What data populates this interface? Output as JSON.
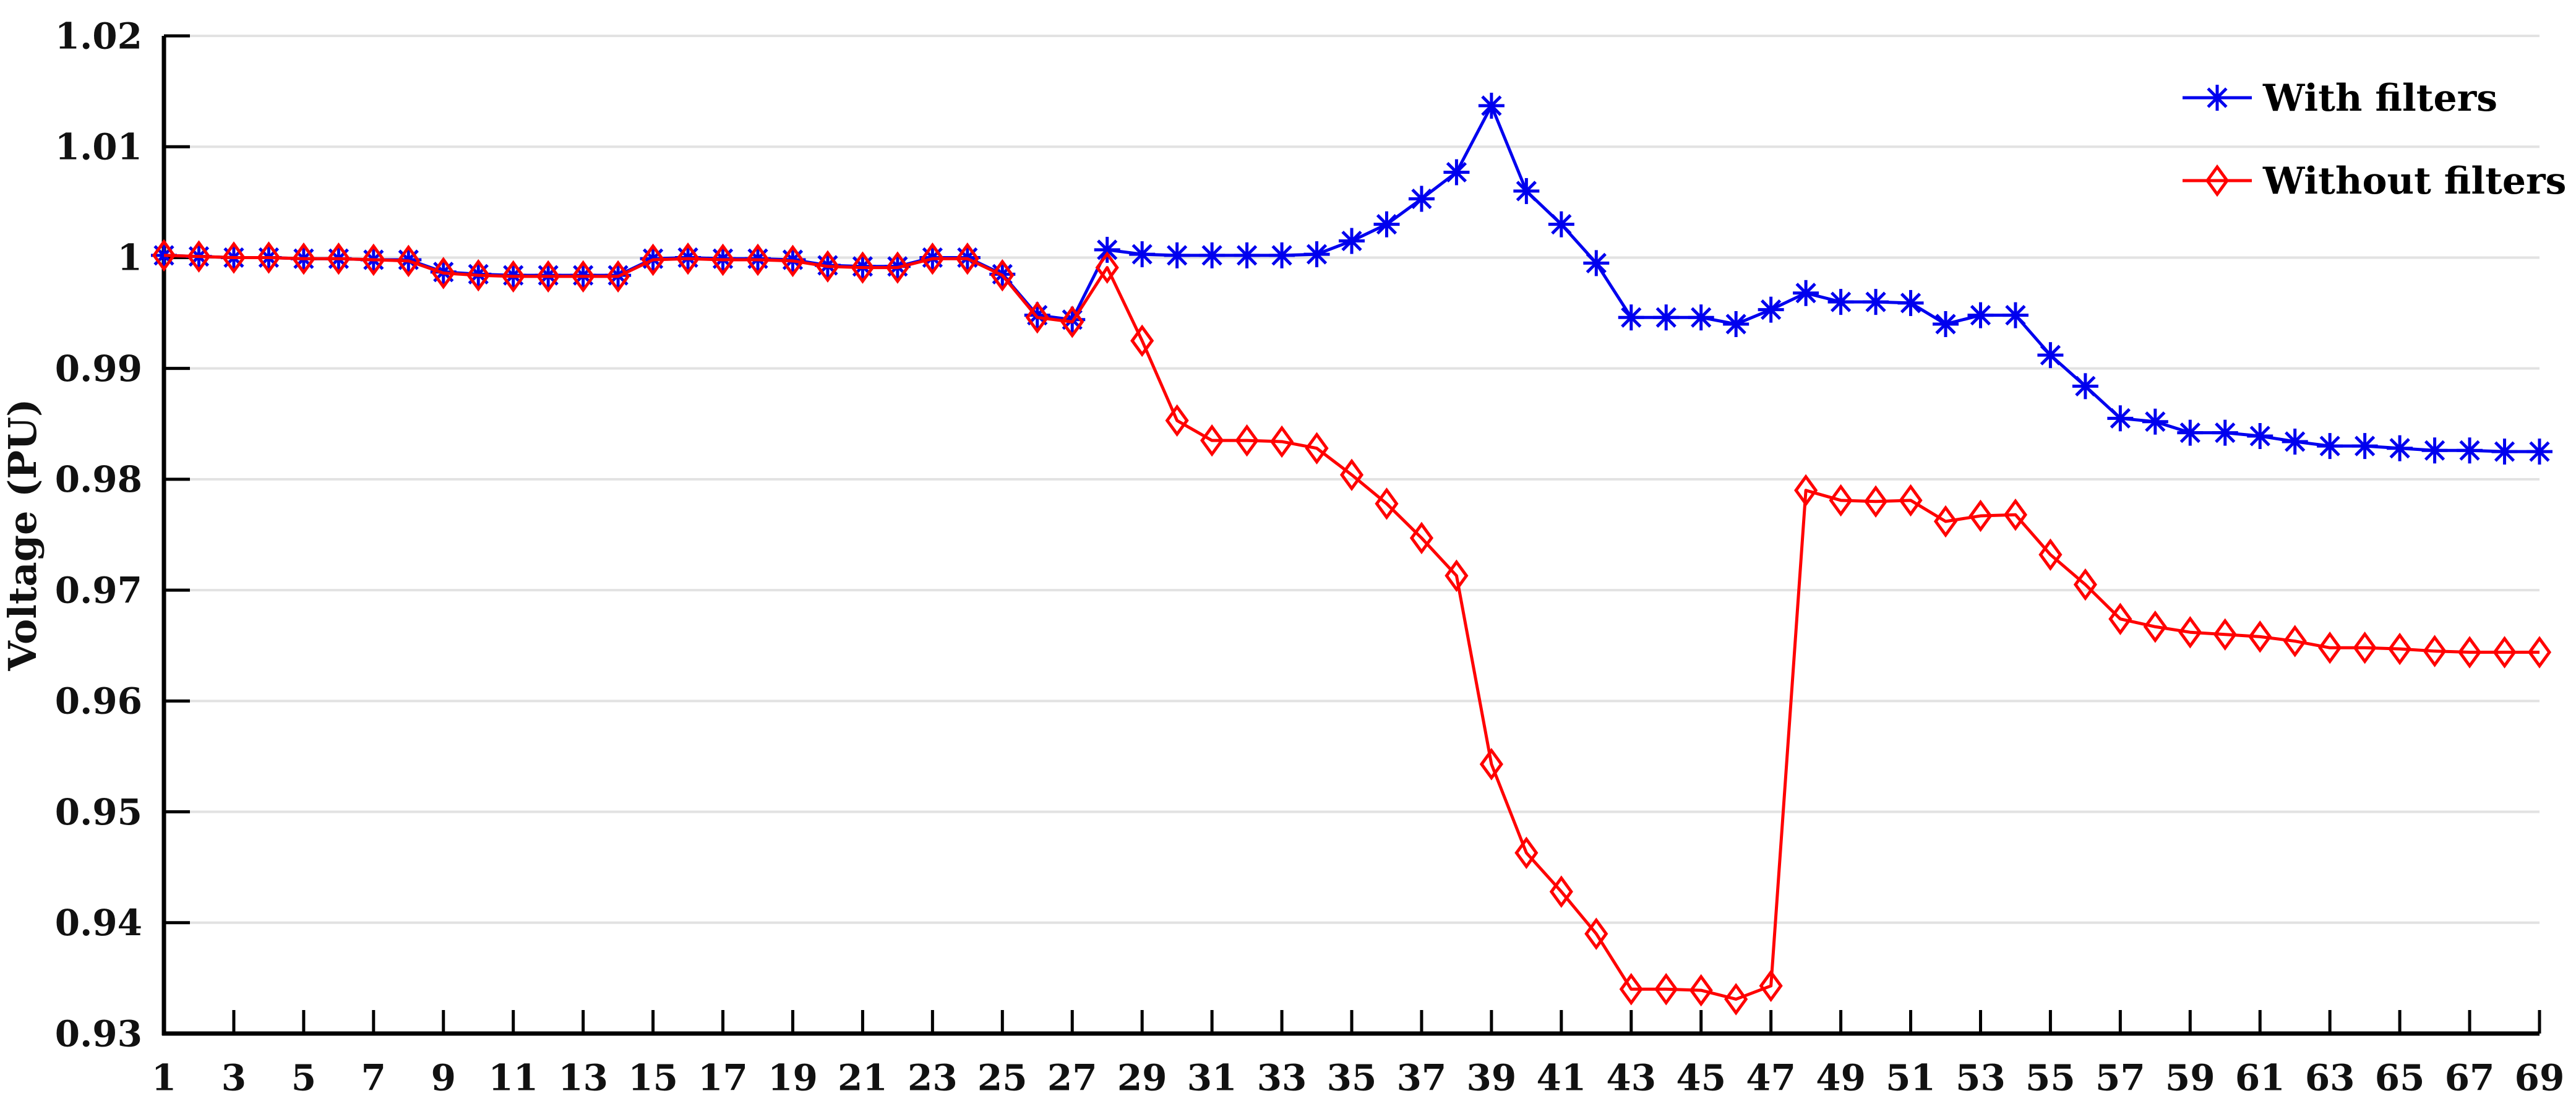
{
  "chart_data": {
    "type": "line",
    "title": "",
    "xlabel": "",
    "ylabel": "Voltage (PU)",
    "x_range": [
      1,
      69
    ],
    "ylim": [
      0.93,
      1.02
    ],
    "grid": "horizontal-only",
    "legend_position": "top-right",
    "xtick_labels": [
      "1",
      "3",
      "5",
      "7",
      "9",
      "11",
      "13",
      "15",
      "17",
      "19",
      "21",
      "23",
      "25",
      "27",
      "29",
      "31",
      "33",
      "35",
      "37",
      "39",
      "41",
      "43",
      "45",
      "47",
      "49",
      "51",
      "53",
      "55",
      "57",
      "59",
      "61",
      "63",
      "65",
      "67",
      "69"
    ],
    "xtick_values": [
      1,
      3,
      5,
      7,
      9,
      11,
      13,
      15,
      17,
      19,
      21,
      23,
      25,
      27,
      29,
      31,
      33,
      35,
      37,
      39,
      41,
      43,
      45,
      47,
      49,
      51,
      53,
      55,
      57,
      59,
      61,
      63,
      65,
      67,
      69
    ],
    "ytick_labels": [
      "0.93",
      "0.94",
      "0.95",
      "0.96",
      "0.97",
      "0.98",
      "0.99",
      "1",
      "1.01",
      "1.02"
    ],
    "ytick_values": [
      0.93,
      0.94,
      0.95,
      0.96,
      0.97,
      0.98,
      0.99,
      1.0,
      1.01,
      1.02
    ],
    "grid_color": "#e2e2e2",
    "axis_color": "#000000",
    "text_color": "#111111",
    "series": [
      {
        "name": "With filters",
        "color": "#0000ee",
        "marker": "asterisk",
        "values": [
          1.0002,
          1.0001,
          1.0,
          1.0,
          0.9999,
          0.9999,
          0.9998,
          0.9998,
          0.9987,
          0.9985,
          0.9984,
          0.9984,
          0.9984,
          0.9984,
          0.9999,
          1.0,
          0.9999,
          0.9999,
          0.9998,
          0.9993,
          0.9992,
          0.9992,
          1.0,
          1.0,
          0.9985,
          0.9948,
          0.9944,
          1.0007,
          1.0003,
          1.0002,
          1.0002,
          1.0002,
          1.0002,
          1.0003,
          1.0015,
          1.003,
          1.0053,
          1.0077,
          1.0137,
          1.006,
          1.003,
          0.9995,
          0.9946,
          0.9946,
          0.9946,
          0.994,
          0.9953,
          0.9968,
          0.996,
          0.996,
          0.9959,
          0.994,
          0.9948,
          0.9948,
          0.9912,
          0.9884,
          0.9855,
          0.9852,
          0.9842,
          0.9842,
          0.9839,
          0.9834,
          0.983,
          0.983,
          0.9828,
          0.9826,
          0.9826,
          0.9825,
          0.9825
        ]
      },
      {
        "name": "Without filters",
        "color": "#ff0000",
        "marker": "diamond",
        "values": [
          1.0002,
          1.0001,
          1.0,
          1.0,
          0.9999,
          0.9999,
          0.9998,
          0.9997,
          0.9986,
          0.9984,
          0.9983,
          0.9983,
          0.9983,
          0.9983,
          0.9998,
          0.9999,
          0.9998,
          0.9998,
          0.9997,
          0.9992,
          0.9991,
          0.9991,
          0.9999,
          0.9999,
          0.9984,
          0.9946,
          0.9942,
          0.9991,
          0.9925,
          0.9853,
          0.9835,
          0.9835,
          0.9834,
          0.9828,
          0.9804,
          0.9778,
          0.9747,
          0.9713,
          0.9543,
          0.9463,
          0.9428,
          0.939,
          0.934,
          0.934,
          0.9339,
          0.9331,
          0.9343,
          0.979,
          0.9781,
          0.978,
          0.9781,
          0.9762,
          0.9767,
          0.9768,
          0.9732,
          0.9705,
          0.9674,
          0.9667,
          0.9662,
          0.966,
          0.9658,
          0.9654,
          0.9648,
          0.9648,
          0.9647,
          0.9645,
          0.9644,
          0.9644,
          0.9644
        ]
      }
    ]
  },
  "legend": {
    "items": [
      {
        "label": "With filters"
      },
      {
        "label": "Without filters"
      }
    ]
  }
}
